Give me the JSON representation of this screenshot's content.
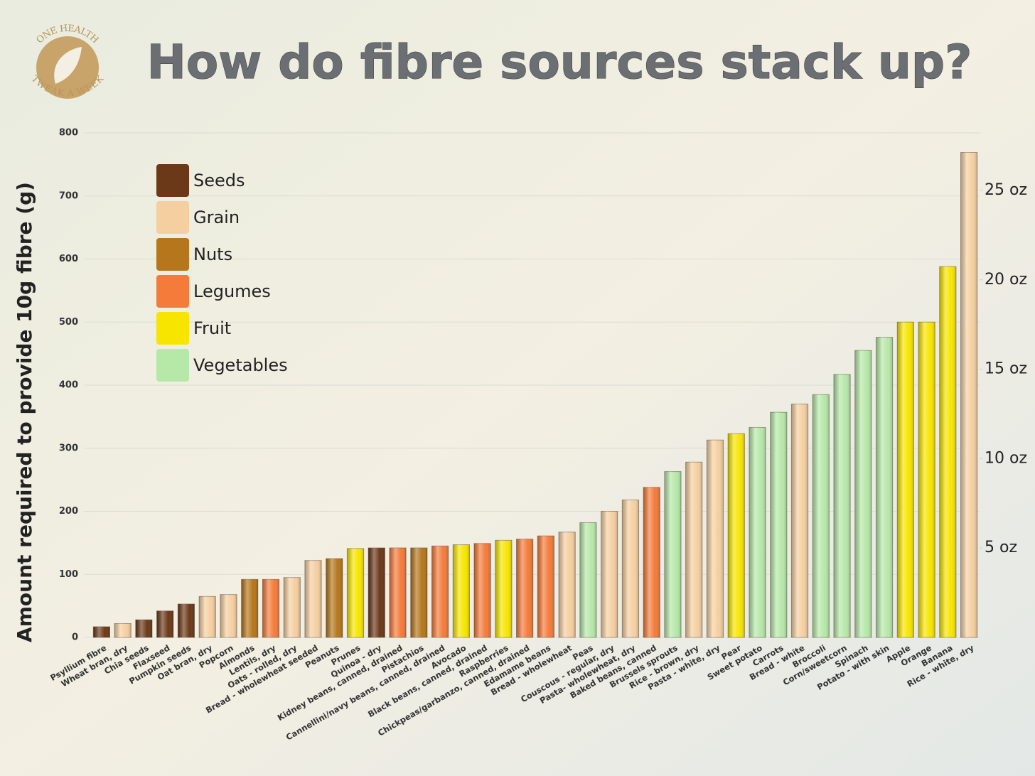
{
  "logo": {
    "top": "ONE HEALTH",
    "bottom": "TWEAK A WEEK"
  },
  "chart_data": {
    "type": "bar",
    "title": "How do fibre sources stack up?",
    "y_label": "Amount required to provide 10g fibre (g)",
    "categories": [
      "Psyllium fibre",
      "Wheat bran, dry",
      "Chia seeds",
      "Flaxseed",
      "Pumpkin seeds",
      "Oat bran, dry",
      "Popcorn",
      "Almonds",
      "Lentils, dry",
      "Oats - rolled, dry",
      "Bread - wholewheat seeded",
      "Peanuts",
      "Prunes",
      "Quinoa - dry",
      "Kidney beans, canned, drained",
      "Pistachios",
      "Cannellini/navy beans, canned, drained",
      "Avocado",
      "Black beans, canned, drained",
      "Raspberries",
      "Chickpeas/garbanzo, canned, drained",
      "Edamame beans",
      "Bread - wholewheat",
      "Peas",
      "Couscous - regular, dry",
      "Pasta- wholewheat, dry",
      "Baked beans, canned",
      "Brussels sprouts",
      "Rice - brown, dry",
      "Pasta - white, dry",
      "Pear",
      "Sweet potato",
      "Carrots",
      "Bread - white",
      "Broccoli",
      "Corn/sweetcorn",
      "Spinach",
      "Potato - with skin",
      "Apple",
      "Orange",
      "Banana",
      "Rice - white, dry"
    ],
    "values": [
      17,
      22,
      28,
      42,
      53,
      65,
      68,
      92,
      92,
      95,
      122,
      125,
      141,
      142,
      142,
      142,
      145,
      147,
      149,
      154,
      156,
      161,
      167,
      182,
      200,
      218,
      238,
      263,
      278,
      313,
      323,
      333,
      357,
      370,
      385,
      417,
      455,
      476,
      500,
      500,
      588,
      769
    ],
    "colors": [
      "#6b3818",
      "#f5cfa0",
      "#6b3818",
      "#6b3818",
      "#6b3818",
      "#f5cfa0",
      "#f5cfa0",
      "#b5761c",
      "#f47b3a",
      "#f5cfa0",
      "#f5cfa0",
      "#b5761c",
      "#f7e500",
      "#6b3818",
      "#f47b3a",
      "#b5761c",
      "#f47b3a",
      "#f7e500",
      "#f47b3a",
      "#f7e500",
      "#f47b3a",
      "#f47b3a",
      "#f5cfa0",
      "#b6e8a8",
      "#f5cfa0",
      "#f5cfa0",
      "#f47b3a",
      "#b6e8a8",
      "#f5cfa0",
      "#f5cfa0",
      "#f7e500",
      "#b6e8a8",
      "#b6e8a8",
      "#f5cfa0",
      "#b6e8a8",
      "#b6e8a8",
      "#b6e8a8",
      "#b6e8a8",
      "#f7e500",
      "#f7e500",
      "#f7e500",
      "#f5cfa0"
    ],
    "legend": [
      {
        "name": "Seeds",
        "color": "#6b3818"
      },
      {
        "name": "Grain",
        "color": "#f5cfa0"
      },
      {
        "name": "Nuts",
        "color": "#b5761c"
      },
      {
        "name": "Legumes",
        "color": "#f47b3a"
      },
      {
        "name": "Fruit",
        "color": "#f7e500"
      },
      {
        "name": "Vegetables",
        "color": "#b6e8a8"
      }
    ],
    "ylim": [
      0,
      800
    ],
    "yticks": [
      0,
      100,
      200,
      300,
      400,
      500,
      600,
      700,
      800
    ],
    "y2lim": [
      0,
      28.22
    ],
    "y2ticks": [
      {
        "value": 5,
        "label": "5 oz"
      },
      {
        "value": 10,
        "label": "10 oz"
      },
      {
        "value": 15,
        "label": "15 oz"
      },
      {
        "value": 20,
        "label": "20 oz"
      },
      {
        "value": 25,
        "label": "25 oz"
      }
    ],
    "grid": true
  }
}
